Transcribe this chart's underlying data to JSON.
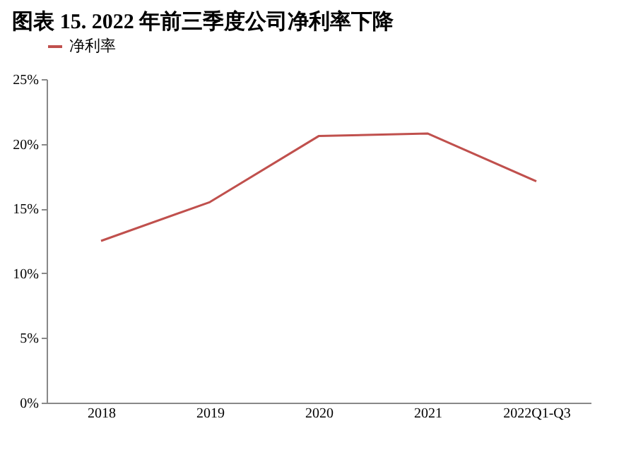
{
  "chart_data": {
    "type": "line",
    "title": "图表 15. 2022 年前三季度公司净利率下降",
    "categories": [
      "2018",
      "2019",
      "2020",
      "2021",
      "2022Q1-Q3"
    ],
    "series": [
      {
        "name": "净利率",
        "color": "#c0504d",
        "values": [
          12.5,
          15.5,
          20.6,
          20.8,
          17.1
        ]
      }
    ],
    "ylim": [
      0,
      25
    ],
    "yticks": [
      {
        "value": 0,
        "label": "0%"
      },
      {
        "value": 5,
        "label": "5%"
      },
      {
        "value": 10,
        "label": "10%"
      },
      {
        "value": 15,
        "label": "15%"
      },
      {
        "value": 20,
        "label": "20%"
      },
      {
        "value": 25,
        "label": "25%"
      }
    ],
    "grid": false,
    "legend": "top",
    "marker": "none",
    "line_style": "solid"
  }
}
